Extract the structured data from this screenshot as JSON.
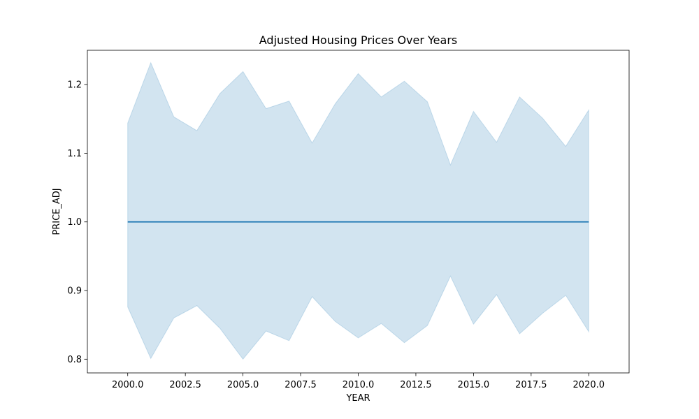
{
  "chart_data": {
    "type": "line",
    "title": "Adjusted Housing Prices Over Years",
    "xlabel": "YEAR",
    "ylabel": "PRICE_ADJ",
    "xlim": [
      1998.25,
      2021.75
    ],
    "ylim": [
      0.78,
      1.25
    ],
    "xticks": [
      2000.0,
      2002.5,
      2005.0,
      2007.5,
      2010.0,
      2012.5,
      2015.0,
      2017.5,
      2020.0
    ],
    "xtick_labels": [
      "2000.0",
      "2002.5",
      "2005.0",
      "2007.5",
      "2010.0",
      "2012.5",
      "2015.0",
      "2017.5",
      "2020.0"
    ],
    "yticks": [
      0.8,
      0.9,
      1.0,
      1.1,
      1.2
    ],
    "ytick_labels": [
      "0.8",
      "0.9",
      "1.0",
      "1.1",
      "1.2"
    ],
    "grid": false,
    "x": [
      2000,
      2001,
      2002,
      2003,
      2004,
      2005,
      2006,
      2007,
      2008,
      2009,
      2010,
      2011,
      2012,
      2013,
      2014,
      2015,
      2016,
      2017,
      2018,
      2019,
      2020
    ],
    "series": [
      {
        "values": [
          1.0,
          1.0,
          1.0,
          1.0,
          1.0,
          1.0,
          1.0,
          1.0,
          1.0,
          1.0,
          1.0,
          1.0,
          1.0,
          1.0,
          1.0,
          1.0,
          1.0,
          1.0,
          1.0,
          1.0,
          1.0
        ],
        "band_upper": [
          1.144,
          1.232,
          1.153,
          1.133,
          1.187,
          1.219,
          1.165,
          1.176,
          1.115,
          1.172,
          1.216,
          1.182,
          1.205,
          1.175,
          1.083,
          1.161,
          1.116,
          1.182,
          1.151,
          1.11,
          1.163
        ],
        "band_lower": [
          0.876,
          0.801,
          0.86,
          0.878,
          0.845,
          0.8,
          0.841,
          0.827,
          0.891,
          0.855,
          0.831,
          0.852,
          0.824,
          0.849,
          0.921,
          0.851,
          0.894,
          0.837,
          0.867,
          0.893,
          0.84
        ],
        "color": "#1f77b4"
      }
    ]
  }
}
